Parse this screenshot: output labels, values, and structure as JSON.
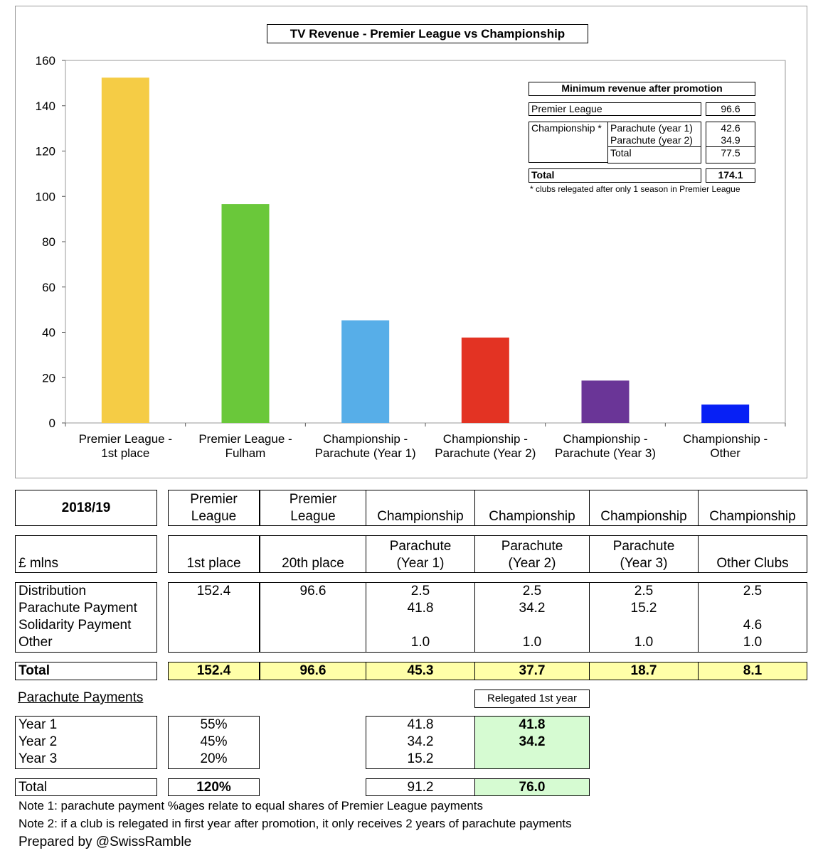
{
  "chart_data": {
    "type": "bar",
    "title": "TV Revenue - Premier League vs Championship",
    "categories": [
      [
        "Premier League -",
        "1st place"
      ],
      [
        "Premier League -",
        "Fulham"
      ],
      [
        "Championship -",
        "Parachute (Year 1)"
      ],
      [
        "Championship -",
        "Parachute (Year 2)"
      ],
      [
        "Championship -",
        "Parachute (Year 3)"
      ],
      [
        "Championship -",
        "Other"
      ]
    ],
    "values": [
      152.4,
      96.6,
      45.3,
      37.7,
      18.7,
      8.1
    ],
    "colors": [
      "#f5cc45",
      "#6ac83a",
      "#57aee8",
      "#e33323",
      "#6a3597",
      "#0720f5"
    ],
    "ylim": [
      0,
      160
    ],
    "yticks": [
      "0",
      "20",
      "40",
      "60",
      "80",
      "100",
      "120",
      "140",
      "160"
    ],
    "grid": false,
    "legend": "none"
  },
  "inset": {
    "title": "Minimum revenue after promotion",
    "premier_label": "Premier League",
    "premier_value": "96.6",
    "champ_label": "Championship *",
    "para1_label": "Parachute (year 1)",
    "para1_value": "42.6",
    "para2_label": "Parachute (year 2)",
    "para2_value": "34.9",
    "sub_total_label": "Total",
    "sub_total_value": "77.5",
    "total_label": "Total",
    "total_value": "174.1",
    "footnote": "* clubs relegated after only 1 season in Premier League"
  },
  "table": {
    "season": "2018/19",
    "unit": "£ mlns",
    "col_header1": [
      [
        "Premier",
        "League"
      ],
      [
        "Premier",
        "League"
      ],
      [
        "",
        "Championship"
      ],
      [
        "",
        "Championship"
      ],
      [
        "",
        "Championship"
      ],
      [
        "",
        "Championship"
      ]
    ],
    "col_header2": [
      [
        "",
        "1st place"
      ],
      [
        "",
        "20th place"
      ],
      [
        "Parachute",
        "(Year 1)"
      ],
      [
        "Parachute",
        "(Year 2)"
      ],
      [
        "Parachute",
        "(Year 3)"
      ],
      [
        "",
        "Other Clubs"
      ]
    ],
    "row_labels": [
      "Distribution",
      "Parachute Payment",
      "Solidarity Payment",
      "Other"
    ],
    "columns": [
      [
        "152.4",
        "",
        "",
        ""
      ],
      [
        "96.6",
        "",
        "",
        ""
      ],
      [
        "2.5",
        "41.8",
        "",
        "1.0"
      ],
      [
        "2.5",
        "34.2",
        "",
        "1.0"
      ],
      [
        "2.5",
        "15.2",
        "",
        "1.0"
      ],
      [
        "2.5",
        "",
        "4.6",
        "1.0"
      ]
    ],
    "total_label": "Total",
    "totals": [
      "152.4",
      "96.6",
      "45.3",
      "37.7",
      "18.7",
      "8.1"
    ]
  },
  "parachute": {
    "heading": "Parachute Payments",
    "relegated_label": "Relegated 1st year",
    "year_labels": [
      "Year 1",
      "Year 2",
      "Year 3"
    ],
    "percents": [
      "55%",
      "45%",
      "20%"
    ],
    "amounts": [
      "41.8",
      "34.2",
      "15.2"
    ],
    "relegated": [
      "41.8",
      "34.2",
      ""
    ],
    "total_label": "Total",
    "total_percent": "120%",
    "total_amount": "91.2",
    "total_relegated": "76.0"
  },
  "notes": {
    "note1": "Note 1: parachute payment %ages relate to equal shares of Premier League payments",
    "note2": "Note 2: if a club is relegated in first year after promotion, it only receives 2 years of parachute payments",
    "credit": "Prepared by @SwissRamble"
  }
}
